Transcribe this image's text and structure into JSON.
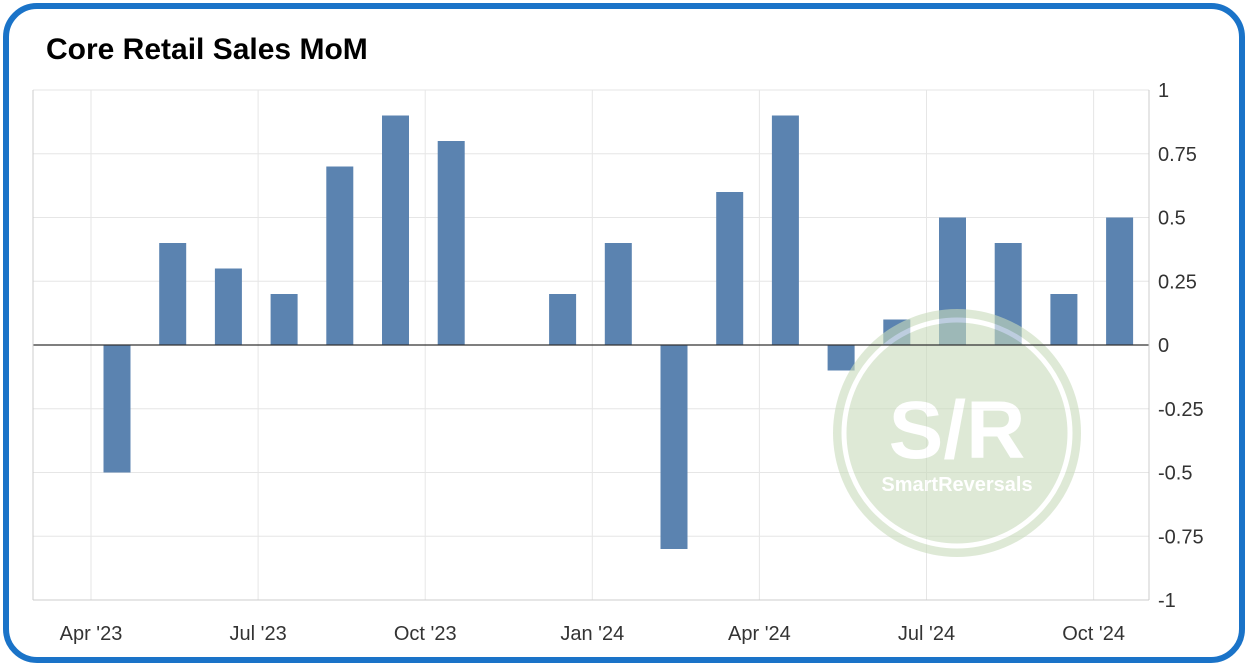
{
  "title": "Core Retail Sales MoM",
  "watermark": {
    "main_text": "S/R",
    "sub_text": "SmartReversals"
  },
  "colors": {
    "frame": "#1a73c8",
    "bar": "#5b83b0",
    "grid": "#e6e6e6",
    "axis_text": "#333333",
    "watermark": "#b7cfa6"
  },
  "chart_data": {
    "type": "bar",
    "title": "Core Retail Sales MoM",
    "xlabel": "",
    "ylabel": "",
    "ylim": [
      -1,
      1
    ],
    "y_axis_side": "right",
    "y_ticks": [
      1,
      0.75,
      0.5,
      0.25,
      0,
      -0.25,
      -0.5,
      -0.75,
      -1
    ],
    "y_tick_labels": [
      "1",
      "0.75",
      "0.5",
      "0.25",
      "0",
      "-0.25",
      "-0.5",
      "-0.75",
      "-1"
    ],
    "x_tick_labels": [
      "Apr '23",
      "Jul '23",
      "Oct '23",
      "Jan '24",
      "Apr '24",
      "Jul '24",
      "Oct '24"
    ],
    "categories": [
      "Apr 2023",
      "May 2023",
      "Jun 2023",
      "Jul 2023",
      "Aug 2023",
      "Sep 2023",
      "Oct 2023",
      "Nov 2023",
      "Dec 2023",
      "Jan 2024",
      "Feb 2024",
      "Mar 2024",
      "Apr 2024",
      "May 2024",
      "Jun 2024",
      "Jul 2024",
      "Aug 2024",
      "Sep 2024",
      "Oct 2024"
    ],
    "values": [
      -0.5,
      0.4,
      0.3,
      0.2,
      0.7,
      0.9,
      0.8,
      0,
      0.2,
      0.4,
      -0.8,
      0.6,
      0.9,
      -0.1,
      0.1,
      0.5,
      0.4,
      0.2,
      0.5
    ],
    "grid": true,
    "legend": "none"
  }
}
